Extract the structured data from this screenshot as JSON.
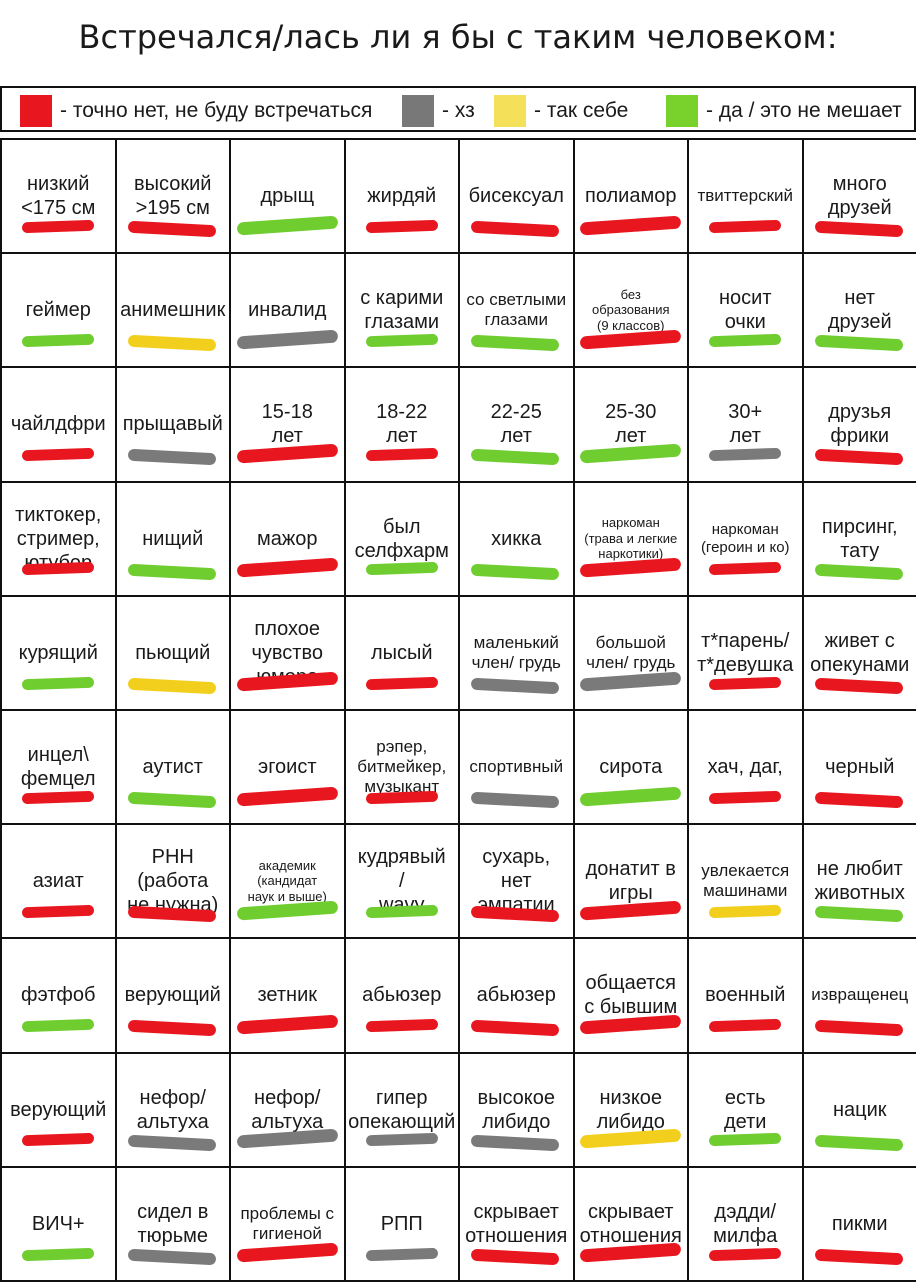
{
  "page": {
    "title": "Встречался/лась ли я бы с таким человеком:"
  },
  "legend": [
    {
      "color": "#e8171f",
      "text": "- точно нет, не буду встречаться"
    },
    {
      "color": "#787878",
      "text": "- хз"
    },
    {
      "color": "#f5e05a",
      "text": "- так себе"
    },
    {
      "color": "#79d12c",
      "text": "- да / это не мешает"
    }
  ],
  "colors": {
    "red": "#e8171f",
    "gray": "#7a7a7a",
    "yellow": "#f2cf1d",
    "green": "#6fcd2f"
  },
  "rows": [
    [
      {
        "label": "низкий\n<175 см",
        "mark": "red"
      },
      {
        "label": "высокий\n>195 см",
        "mark": "red"
      },
      {
        "label": "дрыщ",
        "mark": "green"
      },
      {
        "label": "жирдяй",
        "mark": "red"
      },
      {
        "label": "бисексуал",
        "mark": "red"
      },
      {
        "label": "полиамор",
        "mark": "red"
      },
      {
        "label": "твиттерский",
        "mark": "red"
      },
      {
        "label": "много\nдрузей",
        "mark": "red"
      }
    ],
    [
      {
        "label": "геймер",
        "mark": "green"
      },
      {
        "label": "анимешник",
        "mark": "yellow"
      },
      {
        "label": "инвалид",
        "mark": "gray"
      },
      {
        "label": "с карими\nглазами",
        "mark": "green"
      },
      {
        "label": "со светлыми\nглазами",
        "mark": "green"
      },
      {
        "label": "без\nобразования\n(9 классов)",
        "mark": "red"
      },
      {
        "label": "носит\nочки",
        "mark": "green"
      },
      {
        "label": "нет\nдрузей",
        "mark": "green"
      }
    ],
    [
      {
        "label": "чайлдфри",
        "mark": "red"
      },
      {
        "label": "прыщавый",
        "mark": "gray"
      },
      {
        "label": "15-18\nлет",
        "mark": "red"
      },
      {
        "label": "18-22\nлет",
        "mark": "red"
      },
      {
        "label": "22-25\nлет",
        "mark": "green"
      },
      {
        "label": "25-30\nлет",
        "mark": "green"
      },
      {
        "label": "30+\nлет",
        "mark": "gray"
      },
      {
        "label": "друзья\nфрики",
        "mark": "red"
      }
    ],
    [
      {
        "label": "тиктокер,\nстример,\nютубер",
        "mark": "red"
      },
      {
        "label": "нищий",
        "mark": "green"
      },
      {
        "label": "мажор",
        "mark": "red"
      },
      {
        "label": "был\nселфхарм",
        "mark": "green"
      },
      {
        "label": "хикка",
        "mark": "green"
      },
      {
        "label": "наркоман\n(трава и легкие\nнаркотики)",
        "mark": "red"
      },
      {
        "label": "наркоман\n(героин и ко)",
        "mark": "red"
      },
      {
        "label": "пирсинг,\nтату",
        "mark": "green"
      }
    ],
    [
      {
        "label": "курящий",
        "mark": "green"
      },
      {
        "label": "пьющий",
        "mark": "yellow"
      },
      {
        "label": "плохое\nчувство\nюмора",
        "mark": "red"
      },
      {
        "label": "лысый",
        "mark": "red"
      },
      {
        "label": "маленький\nчлен/ грудь",
        "mark": "gray"
      },
      {
        "label": "большой\nчлен/ грудь",
        "mark": "gray"
      },
      {
        "label": "т*парень/\nт*девушка",
        "mark": "red"
      },
      {
        "label": "живет с\nопекунами",
        "mark": "red"
      }
    ],
    [
      {
        "label": "инцел\\\nфемцел",
        "mark": "red"
      },
      {
        "label": "аутист",
        "mark": "green"
      },
      {
        "label": "эгоист",
        "mark": "red"
      },
      {
        "label": "рэпер,\nбитмейкер,\nмузыкант",
        "mark": "red"
      },
      {
        "label": "спортивный",
        "mark": "gray"
      },
      {
        "label": "сирота",
        "mark": "green"
      },
      {
        "label": "хач, даг,",
        "mark": "red"
      },
      {
        "label": "черный",
        "mark": "red"
      }
    ],
    [
      {
        "label": "азиат",
        "mark": "red"
      },
      {
        "label": "РНН\n(работа\nне нужна)",
        "mark": "red"
      },
      {
        "label": "академик\n(кандидат\nнаук и выше)",
        "mark": "green"
      },
      {
        "label": "кудрявый\n/\nwavy",
        "mark": "green"
      },
      {
        "label": "сухарь,\nнет\nэмпатии",
        "mark": "red"
      },
      {
        "label": "донатит в\nигры",
        "mark": "red"
      },
      {
        "label": "увлекается\nмашинами",
        "mark": "yellow"
      },
      {
        "label": "не любит\nживотных",
        "mark": "green"
      }
    ],
    [
      {
        "label": "фэтфоб",
        "mark": "green"
      },
      {
        "label": "верующий",
        "mark": "red"
      },
      {
        "label": "зетник",
        "mark": "red"
      },
      {
        "label": "абьюзер",
        "mark": "red"
      },
      {
        "label": "абьюзер",
        "mark": "red"
      },
      {
        "label": "общается\nс бывшим",
        "mark": "red"
      },
      {
        "label": "военный",
        "mark": "red"
      },
      {
        "label": "извращенец",
        "mark": "red"
      }
    ],
    [
      {
        "label": "верующий",
        "mark": "red"
      },
      {
        "label": "нефор/\nальтуха",
        "mark": "gray"
      },
      {
        "label": "нефор/\nальтуха",
        "mark": "gray"
      },
      {
        "label": "гипер\nопекающий",
        "mark": "gray"
      },
      {
        "label": "высокое\nлибидо",
        "mark": "gray"
      },
      {
        "label": "низкое\nлибидо",
        "mark": "yellow"
      },
      {
        "label": "есть\nдети",
        "mark": "green"
      },
      {
        "label": "нацик",
        "mark": "green"
      }
    ],
    [
      {
        "label": "ВИЧ+",
        "mark": "green"
      },
      {
        "label": "сидел в\nтюрьме",
        "mark": "gray"
      },
      {
        "label": "проблемы с\nгигиеной",
        "mark": "red"
      },
      {
        "label": "РПП",
        "mark": "gray"
      },
      {
        "label": "скрывает\nотношения",
        "mark": "red"
      },
      {
        "label": "скрывает\nотношения",
        "mark": "red"
      },
      {
        "label": "дэдди/\nмилфа",
        "mark": "red"
      },
      {
        "label": "пикми",
        "mark": "red"
      }
    ]
  ]
}
